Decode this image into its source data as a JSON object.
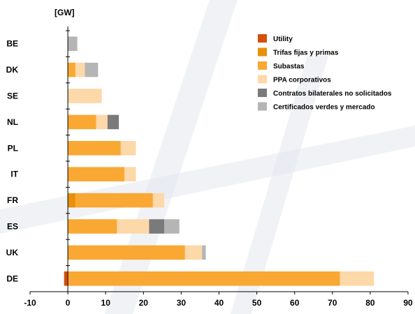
{
  "chart_data": {
    "type": "bar",
    "orientation": "horizontal",
    "stacked": true,
    "unit_label": "[GW]",
    "categories": [
      "BE",
      "DK",
      "SE",
      "NL",
      "PL",
      "IT",
      "FR",
      "ES",
      "UK",
      "DE"
    ],
    "series": [
      {
        "name": "Utility",
        "color": "#d4500a",
        "values": [
          0,
          0,
          0,
          0,
          0,
          0,
          0,
          0,
          0,
          -1
        ]
      },
      {
        "name": "Trifas fijas y primas",
        "color": "#e8900a",
        "values": [
          0,
          0,
          0,
          0,
          0,
          0,
          2,
          0,
          0,
          0
        ]
      },
      {
        "name": "Subastas",
        "color": "#f9a833",
        "values": [
          0,
          2,
          0,
          7.5,
          14,
          15,
          20.5,
          13,
          31,
          72
        ]
      },
      {
        "name": "PPA corporativos",
        "color": "#fdd8a8",
        "values": [
          0,
          2.5,
          9,
          3,
          4,
          3,
          3,
          8.5,
          4.5,
          9
        ]
      },
      {
        "name": "Contratos bilaterales no solicitados",
        "color": "#7a7a7a",
        "values": [
          0,
          0,
          0,
          3,
          0,
          0,
          0,
          4,
          0,
          0
        ]
      },
      {
        "name": "Certificados verdes y mercado",
        "color": "#b5b5b5",
        "values": [
          2.5,
          3.5,
          0,
          0,
          0,
          0,
          0,
          4,
          1,
          0
        ]
      }
    ],
    "xlim": [
      -10,
      90
    ],
    "x_ticks": [
      -10,
      0,
      10,
      20,
      30,
      40,
      50,
      60,
      70,
      80,
      90
    ],
    "grid": false,
    "legend_position": "top-right"
  }
}
